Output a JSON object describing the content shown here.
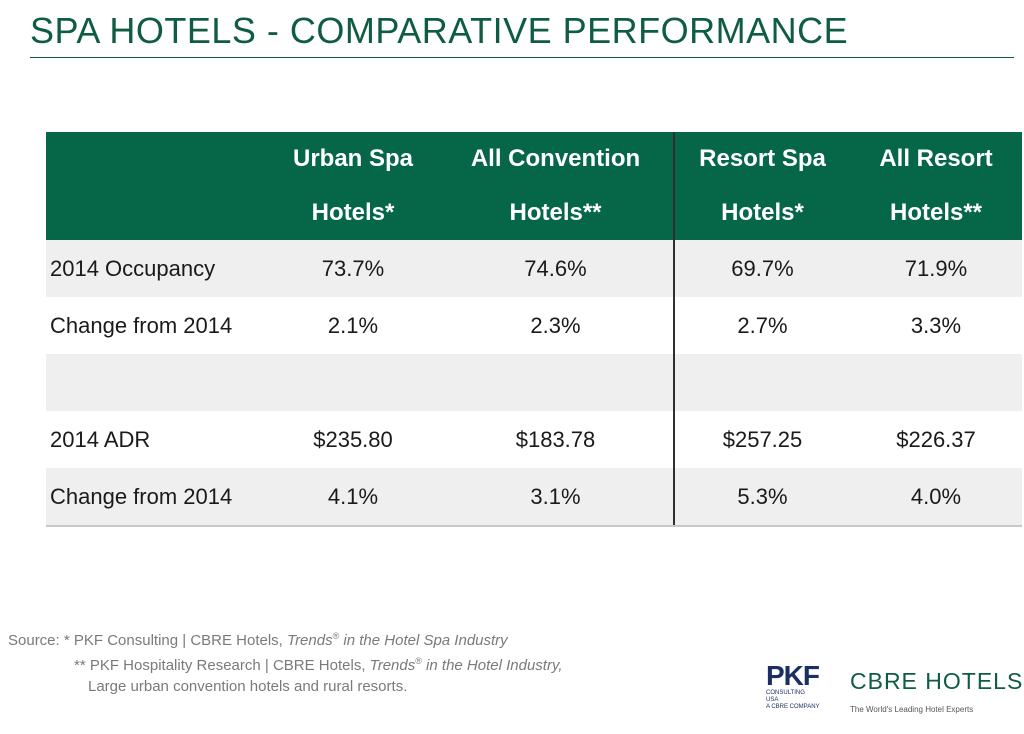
{
  "title": "SPA HOTELS - COMPARATIVE PERFORMANCE",
  "table": {
    "headers": [
      {
        "line1": "Urban Spa",
        "line2": "Hotels*"
      },
      {
        "line1": "All Convention",
        "line2": "Hotels**"
      },
      {
        "line1": "Resort Spa",
        "line2": "Hotels*"
      },
      {
        "line1": "All Resort",
        "line2": "Hotels**"
      }
    ],
    "rows": [
      {
        "label": "2014 Occupancy",
        "values": [
          "73.7%",
          "74.6%",
          "69.7%",
          "71.9%"
        ]
      },
      {
        "label": "Change from 2014",
        "values": [
          "2.1%",
          "2.3%",
          "2.7%",
          "3.3%"
        ]
      },
      {
        "label": "",
        "values": [
          "",
          "",
          "",
          ""
        ]
      },
      {
        "label": "2014 ADR",
        "values": [
          "$235.80",
          "$183.78",
          "$257.25",
          "$226.37"
        ]
      },
      {
        "label": "Change from 2014",
        "values": [
          "4.1%",
          "3.1%",
          "5.3%",
          "4.0%"
        ]
      }
    ]
  },
  "source": {
    "line1_prefix": "Source: * PKF Consulting | CBRE Hotels, ",
    "line1_italic": "Trends",
    "line1_mark": "®",
    "line1_italic_end": " in the Hotel Spa Industry",
    "line2_prefix": "** PKF Hospitality Research | CBRE Hotels, ",
    "line2_italic": "Trends",
    "line2_mark": "®",
    "line2_italic_end": " in the Hotel  Industry,",
    "line3": "Large urban convention hotels and rural resorts."
  },
  "logos": {
    "pkf": "PKF",
    "pkf_sub1": "CONSULTING",
    "pkf_sub2": "USA",
    "pkf_sub3": "A CBRE COMPANY",
    "cbre": "CBRE HOTELS",
    "cbre_tag": "The World's Leading Hotel Experts"
  }
}
